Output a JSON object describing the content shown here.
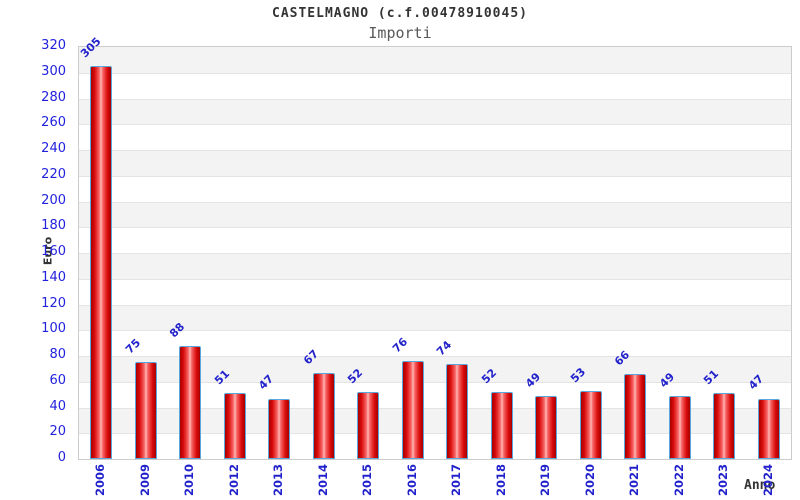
{
  "header": {
    "title": "CASTELMAGNO (c.f.00478910045)",
    "subtitle": "Importi"
  },
  "chart_data": {
    "type": "bar",
    "title": "CASTELMAGNO (c.f.00478910045)",
    "subtitle": "Importi",
    "xlabel": "Anno",
    "ylabel": "Euro",
    "categories": [
      "2006",
      "2009",
      "2010",
      "2012",
      "2013",
      "2014",
      "2015",
      "2016",
      "2017",
      "2018",
      "2019",
      "2020",
      "2021",
      "2022",
      "2023",
      "2024"
    ],
    "values": [
      305,
      75,
      88,
      51,
      47,
      67,
      52,
      76,
      74,
      52,
      49,
      53,
      66,
      49,
      51,
      47
    ],
    "ylim": [
      0,
      320
    ],
    "ytick_step": 20,
    "legend": "none",
    "grid": "alternating horizontal bands every 20 units",
    "colors": {
      "bar_fill_dark": "#a80000",
      "bar_fill_mid": "#d90b0b",
      "bar_fill_light_center": "#ffb8b8",
      "bar_border": "#5aa7dc",
      "tick_label_blue": "#2222cc",
      "band_gray": "#f3f3f3",
      "band_white": "#ffffff",
      "grid_line": "#e4e4e4",
      "plot_border": "#cccccc",
      "title_color": "#333333",
      "subtitle_color": "#595959"
    }
  }
}
